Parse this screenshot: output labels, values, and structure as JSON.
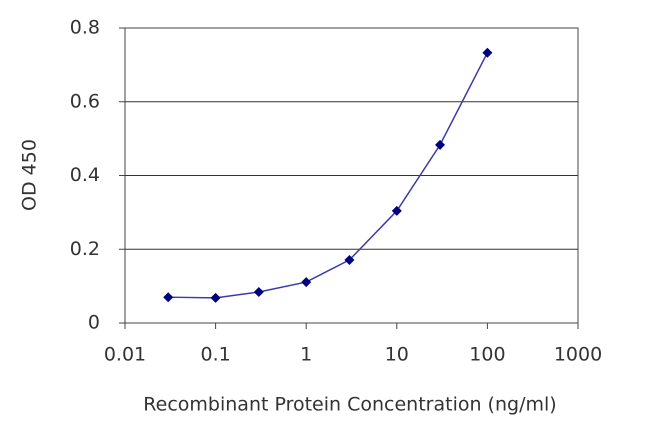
{
  "chart_data": {
    "type": "line",
    "x_label": "Recombinant Protein Concentration (ng/ml)",
    "y_label": "OD 450",
    "x": [
      0.03,
      0.1,
      0.3,
      1,
      3,
      10,
      30,
      100
    ],
    "series": [
      {
        "color": "#3a3aa8",
        "marker_color": "#000080",
        "values": [
          0.07,
          0.068,
          0.084,
          0.111,
          0.171,
          0.304,
          0.483,
          0.733
        ]
      }
    ],
    "xlim": [
      0.01,
      1000
    ],
    "xticks": [
      0.01,
      0.1,
      1,
      10,
      100,
      1000
    ],
    "x_log": true,
    "ylim": [
      0,
      0.8
    ],
    "yticks": [
      0,
      0.2,
      0.4,
      0.6,
      0.8
    ],
    "grid": true
  }
}
